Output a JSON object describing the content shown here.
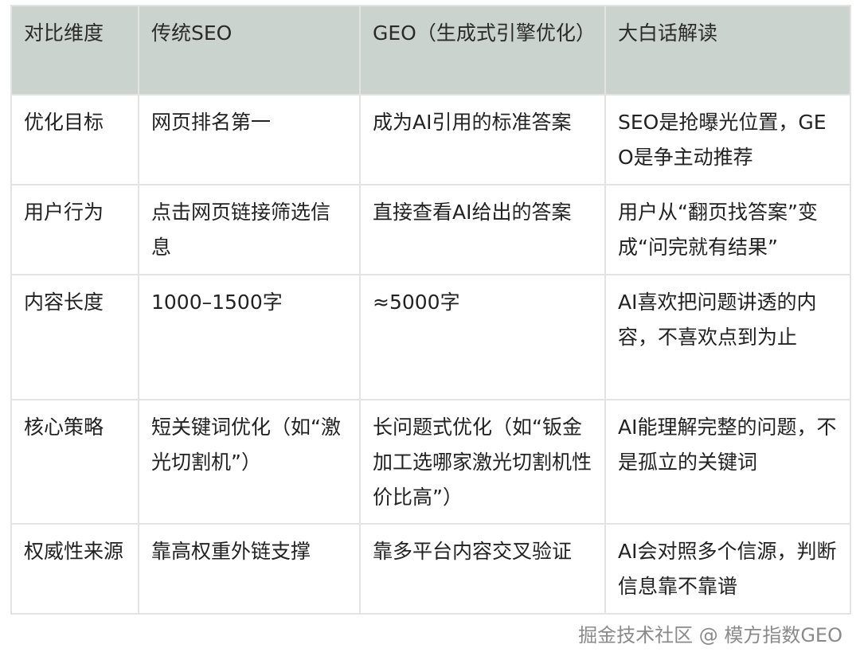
{
  "table": {
    "headers": [
      "对比维度",
      "传统SEO",
      "GEO（生成式引擎优化）",
      "大白话解读"
    ],
    "rows": [
      [
        "优化目标",
        "网页排名第一",
        "成为AI引用的标准答案",
        "SEO是抢曝光位置，GEO是争主动推荐"
      ],
      [
        "用户行为",
        "点击网页链接筛选信息",
        "直接查看AI给出的答案",
        "用户从“翻页找答案”变成“问完就有结果”"
      ],
      [
        "内容长度",
        "1000–1500字",
        "≈5000字",
        "AI喜欢把问题讲透的内容，不喜欢点到为止"
      ],
      [
        "核心策略",
        "短关键词优化（如“激光切割机”）",
        "长问题式优化（如“钣金加工选哪家激光切割机性价比高”）",
        "AI能理解完整的问题，不是孤立的关键词"
      ],
      [
        "权威性来源",
        "靠高权重外链支撑",
        "靠多平台内容交叉验证",
        "AI会对照多个信源，判断信息靠不靠谱"
      ]
    ]
  },
  "watermark": "掘金技术社区 @ 模方指数GEO",
  "colors": {
    "header_bg": "#cbd3ce",
    "border": "#e2e4e3"
  }
}
